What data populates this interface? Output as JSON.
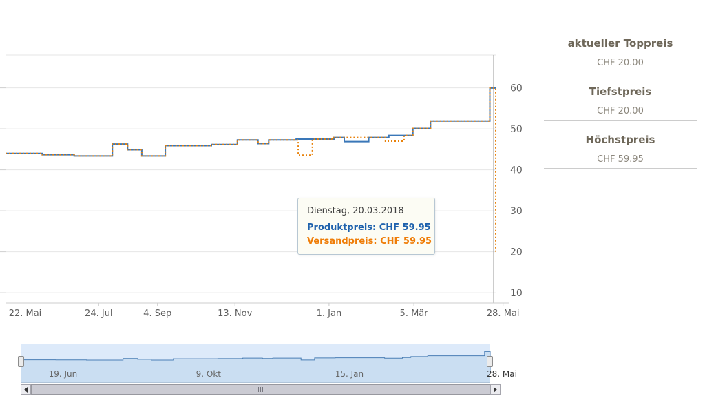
{
  "panel": {
    "items": [
      {
        "label": "aktueller Toppreis",
        "value": "CHF 20.00"
      },
      {
        "label": "Tiefstpreis",
        "value": "CHF 20.00"
      },
      {
        "label": "Höchstpreis",
        "value": "CHF 59.95"
      }
    ]
  },
  "tooltip": {
    "date": "Dienstag, 20.03.2018",
    "product_label": "Produktpreis:",
    "product_value": "CHF 59.95",
    "shipping_label": "Versandpreis:",
    "shipping_value": "CHF 59.95",
    "product_color": "#1f62ad",
    "shipping_color": "#ef7d08"
  },
  "chart_data": {
    "type": "line",
    "step": true,
    "currency": "CHF",
    "title": "",
    "xlabel": "",
    "ylabel": "",
    "ylim": [
      7.5,
      68
    ],
    "grid": true,
    "y_ticks": [
      10,
      20,
      30,
      40,
      50,
      60
    ],
    "x_ticks": [
      {
        "label": "22. Mai",
        "t": 0.04
      },
      {
        "label": "24. Jul",
        "t": 0.19
      },
      {
        "label": "4. Sep",
        "t": 0.31
      },
      {
        "label": "13. Nov",
        "t": 0.468
      },
      {
        "label": "1. Jan",
        "t": 0.66
      },
      {
        "label": "5. Mär",
        "t": 0.833
      },
      {
        "label": "28. Mai",
        "t": 1.015
      }
    ],
    "series": [
      {
        "name": "Produktpreis",
        "color": "#3a77b8",
        "dash": "",
        "points": [
          [
            0.0,
            44.0
          ],
          [
            0.075,
            43.7
          ],
          [
            0.14,
            43.4
          ],
          [
            0.218,
            46.3
          ],
          [
            0.249,
            44.9
          ],
          [
            0.278,
            43.4
          ],
          [
            0.326,
            45.9
          ],
          [
            0.42,
            46.2
          ],
          [
            0.473,
            47.3
          ],
          [
            0.515,
            46.4
          ],
          [
            0.537,
            47.3
          ],
          [
            0.593,
            47.5
          ],
          [
            0.67,
            47.9
          ],
          [
            0.691,
            46.9
          ],
          [
            0.741,
            47.9
          ],
          [
            0.782,
            48.4
          ],
          [
            0.831,
            50.1
          ],
          [
            0.867,
            51.9
          ],
          [
            0.988,
            59.95
          ],
          [
            1.0,
            59.95
          ]
        ]
      },
      {
        "name": "Versandpreis",
        "color": "#e8820c",
        "dash": "2,3",
        "points": [
          [
            0.0,
            44.0
          ],
          [
            0.075,
            43.7
          ],
          [
            0.14,
            43.4
          ],
          [
            0.218,
            46.3
          ],
          [
            0.249,
            44.9
          ],
          [
            0.278,
            43.4
          ],
          [
            0.326,
            45.9
          ],
          [
            0.42,
            46.2
          ],
          [
            0.473,
            47.3
          ],
          [
            0.515,
            46.4
          ],
          [
            0.537,
            47.3
          ],
          [
            0.597,
            43.6
          ],
          [
            0.626,
            47.5
          ],
          [
            0.67,
            47.9
          ],
          [
            0.741,
            47.9
          ],
          [
            0.775,
            47.0
          ],
          [
            0.813,
            48.4
          ],
          [
            0.831,
            50.1
          ],
          [
            0.867,
            51.9
          ],
          [
            0.988,
            59.95
          ],
          [
            0.998,
            59.95
          ],
          [
            1.0,
            20.0
          ]
        ]
      }
    ],
    "navigator": {
      "x_ticks": [
        {
          "label": "19. Jun",
          "t": 0.09,
          "outside": false
        },
        {
          "label": "9. Okt",
          "t": 0.4,
          "outside": false
        },
        {
          "label": "15. Jan",
          "t": 0.7,
          "outside": false
        },
        {
          "label": "28. Mai",
          "t": 1.025,
          "outside": true
        }
      ]
    }
  }
}
